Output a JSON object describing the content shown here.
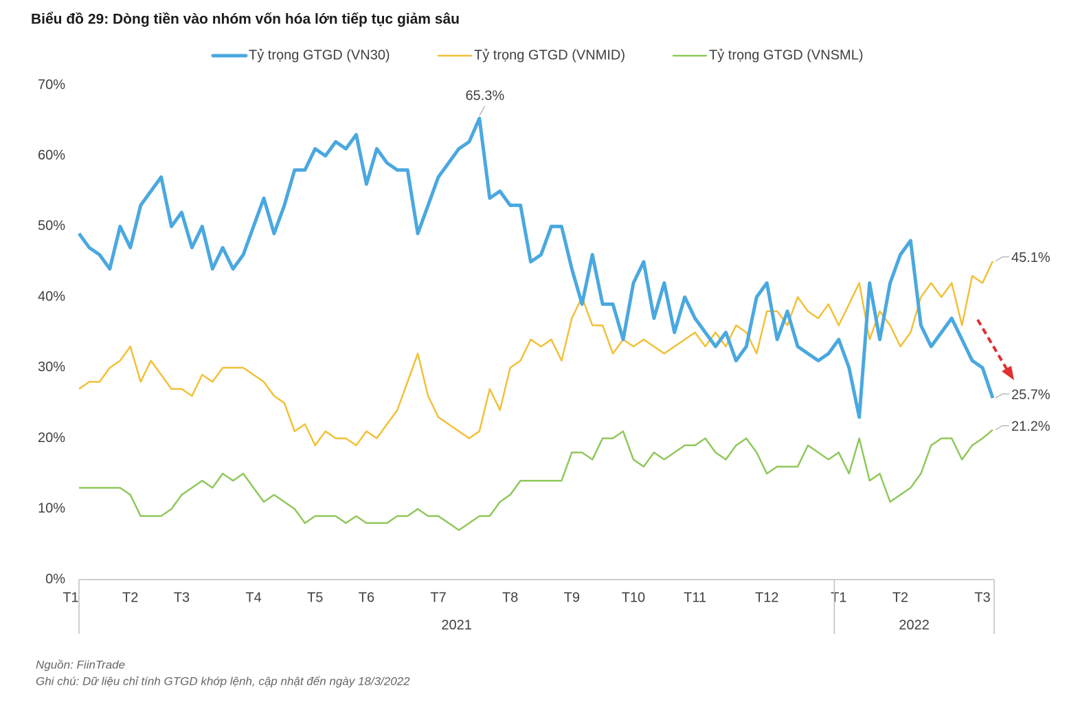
{
  "chart_data": {
    "type": "line",
    "title": "Biểu đồ 29: Dòng tiền vào nhóm vốn hóa lớn tiếp tục giảm sâu",
    "categories": [
      "T1",
      null,
      null,
      null,
      null,
      "T2",
      null,
      null,
      null,
      null,
      "T3",
      null,
      null,
      null,
      null,
      null,
      null,
      "T4",
      null,
      null,
      null,
      null,
      null,
      "T5",
      null,
      null,
      null,
      null,
      "T6",
      null,
      null,
      null,
      null,
      null,
      null,
      "T7",
      null,
      null,
      null,
      null,
      null,
      null,
      "T8",
      null,
      null,
      null,
      null,
      null,
      "T9",
      null,
      null,
      null,
      null,
      null,
      "T10",
      null,
      null,
      null,
      null,
      null,
      "T11",
      null,
      null,
      null,
      null,
      null,
      null,
      "T12",
      null,
      null,
      null,
      null,
      null,
      null,
      "T1",
      null,
      null,
      null,
      null,
      null,
      "T2",
      null,
      null,
      null,
      null,
      null,
      null,
      null,
      "T3",
      null
    ],
    "years": [
      "2021",
      "2022"
    ],
    "series": [
      {
        "name": "Tỷ trọng GTGD (VN30)",
        "color": "#4aa8e0",
        "width": 5,
        "values": [
          49,
          47,
          46,
          44,
          50,
          47,
          53,
          55,
          57,
          50,
          52,
          47,
          50,
          44,
          47,
          44,
          46,
          50,
          54,
          49,
          53,
          58,
          58,
          61,
          60,
          62,
          61,
          63,
          56,
          61,
          59,
          58,
          58,
          49,
          53,
          57,
          59,
          61,
          62,
          65.3,
          54,
          55,
          53,
          53,
          45,
          46,
          50,
          50,
          44,
          39,
          46,
          39,
          39,
          34,
          42,
          45,
          37,
          42,
          35,
          40,
          37,
          35,
          33,
          35,
          31,
          33,
          40,
          42,
          34,
          38,
          33,
          32,
          31,
          32,
          34,
          30,
          23,
          42,
          34,
          42,
          46,
          48,
          36,
          33,
          35,
          37,
          34,
          31,
          30,
          25.7
        ],
        "value_labels": [
          null,
          null,
          null,
          null,
          null,
          null,
          null,
          null,
          null,
          null,
          null,
          null,
          null,
          null,
          null,
          null,
          null,
          null,
          null,
          null,
          null,
          null,
          null,
          null,
          null,
          null,
          null,
          null,
          null,
          null,
          null,
          null,
          null,
          null,
          null,
          null,
          null,
          null,
          null,
          "65.3%",
          null,
          null,
          null,
          null,
          null,
          null,
          null,
          null,
          null,
          null,
          null,
          null,
          null,
          null,
          null,
          null,
          null,
          null,
          null,
          null,
          null,
          null,
          null,
          null,
          null,
          null,
          null,
          null,
          null,
          null,
          null,
          null,
          null,
          null,
          null,
          null,
          null,
          null,
          null,
          null,
          null,
          null,
          null,
          null,
          null,
          null,
          null,
          null,
          null,
          "25.7%"
        ]
      },
      {
        "name": "Tỷ trọng GTGD (VNMID)",
        "color": "#f2c037",
        "width": 2.5,
        "values": [
          27,
          28,
          28,
          30,
          31,
          33,
          28,
          31,
          29,
          27,
          27,
          26,
          29,
          28,
          30,
          30,
          30,
          29,
          28,
          26,
          25,
          21,
          22,
          19,
          21,
          20,
          20,
          19,
          21,
          20,
          22,
          24,
          28,
          32,
          26,
          23,
          22,
          21,
          20,
          21,
          27,
          24,
          30,
          31,
          34,
          33,
          34,
          31,
          37,
          40,
          36,
          36,
          32,
          34,
          33,
          34,
          33,
          32,
          33,
          34,
          35,
          33,
          35,
          33,
          36,
          35,
          32,
          38,
          38,
          36,
          40,
          38,
          37,
          39,
          36,
          39,
          42,
          34,
          38,
          36,
          33,
          35,
          40,
          42,
          40,
          42,
          36,
          43,
          42,
          45.1
        ],
        "value_labels": [
          null,
          null,
          null,
          null,
          null,
          null,
          null,
          null,
          null,
          null,
          null,
          null,
          null,
          null,
          null,
          null,
          null,
          null,
          null,
          null,
          null,
          null,
          null,
          null,
          null,
          null,
          null,
          null,
          null,
          null,
          null,
          null,
          null,
          null,
          null,
          null,
          null,
          null,
          null,
          null,
          null,
          null,
          null,
          null,
          null,
          null,
          null,
          null,
          null,
          null,
          null,
          null,
          null,
          null,
          null,
          null,
          null,
          null,
          null,
          null,
          null,
          null,
          null,
          null,
          null,
          null,
          null,
          null,
          null,
          null,
          null,
          null,
          null,
          null,
          null,
          null,
          null,
          null,
          null,
          null,
          null,
          null,
          null,
          null,
          null,
          null,
          null,
          null,
          null,
          "45.1%"
        ]
      },
      {
        "name": "Tỷ trọng GTGD (VNSML)",
        "color": "#8fc85a",
        "width": 2.5,
        "values": [
          13,
          13,
          13,
          13,
          13,
          12,
          9,
          9,
          9,
          10,
          12,
          13,
          14,
          13,
          15,
          14,
          15,
          13,
          11,
          12,
          11,
          10,
          8,
          9,
          9,
          9,
          8,
          9,
          8,
          8,
          8,
          9,
          9,
          10,
          9,
          9,
          8,
          7,
          8,
          9,
          9,
          11,
          12,
          14,
          14,
          14,
          14,
          14,
          18,
          18,
          17,
          20,
          20,
          21,
          17,
          16,
          18,
          17,
          18,
          19,
          19,
          20,
          18,
          17,
          19,
          20,
          18,
          15,
          16,
          16,
          16,
          19,
          18,
          17,
          18,
          15,
          20,
          14,
          15,
          11,
          12,
          13,
          15,
          19,
          20,
          20,
          17,
          19,
          20,
          21.2
        ],
        "value_labels": [
          null,
          null,
          null,
          null,
          null,
          null,
          null,
          null,
          null,
          null,
          null,
          null,
          null,
          null,
          null,
          null,
          null,
          null,
          null,
          null,
          null,
          null,
          null,
          null,
          null,
          null,
          null,
          null,
          null,
          null,
          null,
          null,
          null,
          null,
          null,
          null,
          null,
          null,
          null,
          null,
          null,
          null,
          null,
          null,
          null,
          null,
          null,
          null,
          null,
          null,
          null,
          null,
          null,
          null,
          null,
          null,
          null,
          null,
          null,
          null,
          null,
          null,
          null,
          null,
          null,
          null,
          null,
          null,
          null,
          null,
          null,
          null,
          null,
          null,
          null,
          null,
          null,
          null,
          null,
          null,
          null,
          null,
          null,
          null,
          null,
          null,
          null,
          null,
          null,
          "21.2%"
        ]
      }
    ],
    "ylim": [
      0,
      70
    ],
    "yticks": [
      {
        "value": 0,
        "label": "0%"
      },
      {
        "value": 10,
        "label": "10%"
      },
      {
        "value": 20,
        "label": "20%"
      },
      {
        "value": 30,
        "label": "30%"
      },
      {
        "value": 40,
        "label": "40%"
      },
      {
        "value": 50,
        "label": "50%"
      },
      {
        "value": 60,
        "label": "60%"
      },
      {
        "value": 70,
        "label": "70%"
      }
    ],
    "grid": false,
    "legend": "top",
    "source": "Nguồn: FiinTrade",
    "note": "Ghi chú: Dữ liệu chỉ tính GTGD khớp lệnh, cập nhật đến ngày 18/3/2022"
  }
}
